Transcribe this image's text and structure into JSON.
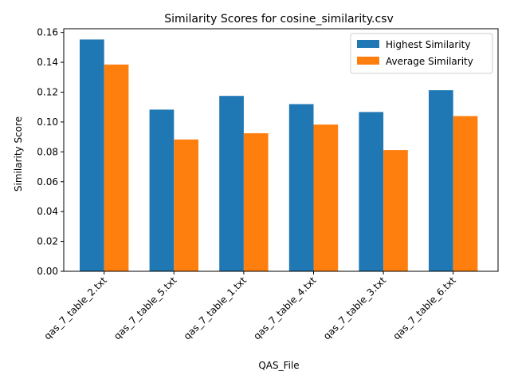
{
  "chart_data": {
    "type": "bar",
    "title": "Similarity Scores for cosine_similarity.csv",
    "xlabel": "QAS_File",
    "ylabel": "Similarity Score",
    "categories": [
      "qas_7_table_2.txt",
      "qas_7_table_5.txt",
      "qas_7_table_1.txt",
      "qas_7_table_4.txt",
      "qas_7_table_3.txt",
      "qas_7_table_6.txt"
    ],
    "series": [
      {
        "name": "Highest Similarity",
        "color": "#1f77b4",
        "values": [
          0.1553,
          0.1083,
          0.1175,
          0.112,
          0.1067,
          0.1213
        ]
      },
      {
        "name": "Average Similarity",
        "color": "#ff7f0e",
        "values": [
          0.1385,
          0.0883,
          0.0925,
          0.0983,
          0.0812,
          0.104
        ]
      }
    ],
    "ylim": [
      0,
      0.1625
    ],
    "yticks": [
      "0.00",
      "0.02",
      "0.04",
      "0.06",
      "0.08",
      "0.10",
      "0.12",
      "0.14",
      "0.16"
    ],
    "legend_position": "top-right",
    "grid": false
  }
}
